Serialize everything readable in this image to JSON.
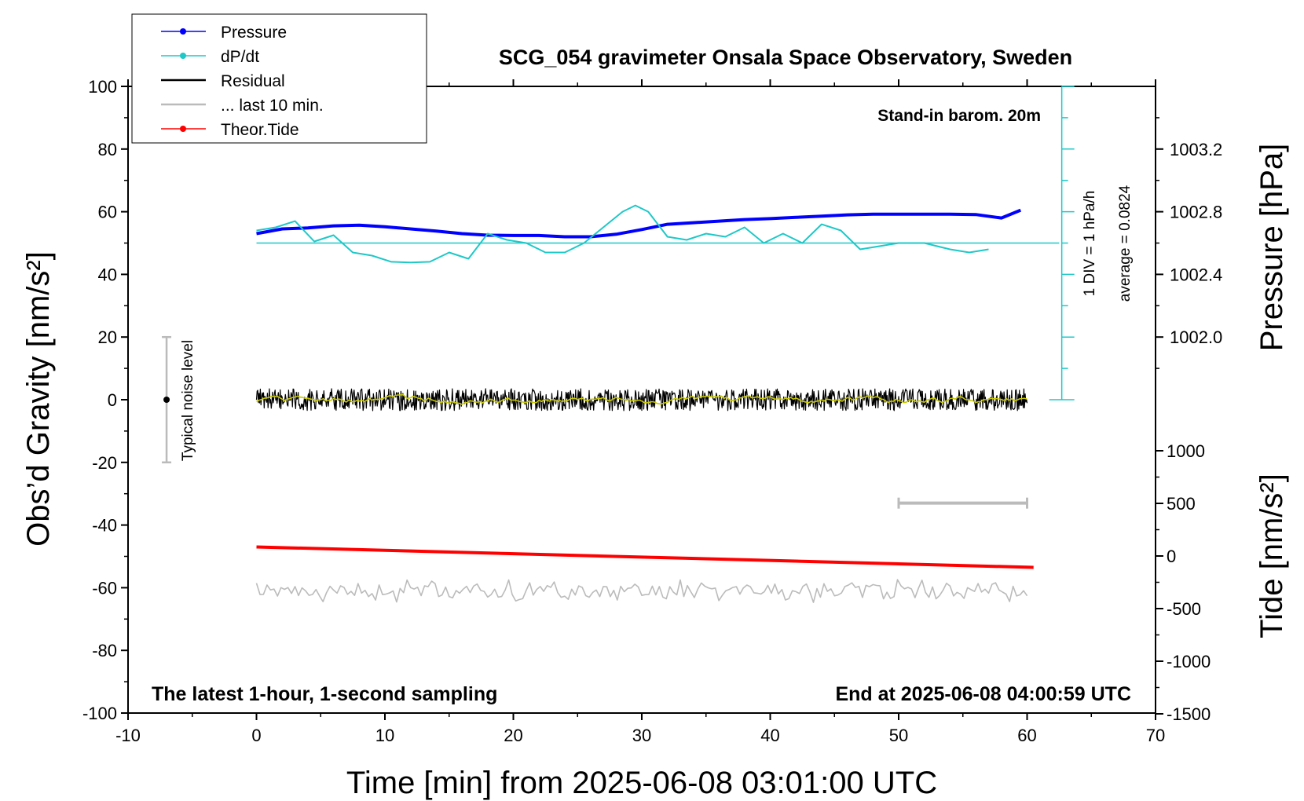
{
  "chart_data": {
    "type": "line",
    "title": "SCG_054 gravimeter Onsala Space Observatory, Sweden",
    "xlabel": "Time [min] from 2025-06-08 03:01:00 UTC",
    "ylabel_left": "Obs’d Gravity [nm/s²]",
    "ylabel_right_top": "Pressure [hPa]",
    "ylabel_right_bottom": "Tide [nm/s²]",
    "xlim": [
      -10,
      70
    ],
    "ylim_left": [
      -100,
      100
    ],
    "x_ticks": [
      -10,
      0,
      10,
      20,
      30,
      40,
      50,
      60,
      70
    ],
    "y_ticks_left": [
      -100,
      -80,
      -60,
      -40,
      -20,
      0,
      20,
      40,
      60,
      80,
      100
    ],
    "pressure_ticks": [
      "1002.0",
      "1002.4",
      "1002.8",
      "1003.2"
    ],
    "tide_ticks": [
      "1000",
      "500",
      "0",
      "-500",
      "-1000",
      "-1500"
    ],
    "annotations": {
      "stand_in": "Stand-in barom. 20m",
      "div": "1 DIV = 1 hPa/h",
      "average": "average = 0.0824",
      "noise": "Typical noise level",
      "bottom_left": "The latest 1-hour, 1-second sampling",
      "bottom_right": "End at 2025-06-08 04:00:59 UTC"
    },
    "legend_placement": "top-left",
    "legend": [
      {
        "name": "Pressure",
        "color": "#0000ff",
        "marker": true
      },
      {
        "name": "dP/dt",
        "color": "#1ec8c8",
        "marker": true
      },
      {
        "name": "Residual",
        "color": "#000000",
        "marker": false
      },
      {
        "name": "... last 10 min.",
        "color": "#bbbbbb",
        "marker": false
      },
      {
        "name": "Theor.Tide",
        "color": "#ff0000",
        "marker": true
      }
    ],
    "series": [
      {
        "name": "Pressure",
        "color": "#0000ff",
        "x": [
          0,
          2,
          4,
          6,
          8,
          10,
          12,
          14,
          16,
          18,
          20,
          22,
          24,
          26,
          28,
          30,
          32,
          34,
          36,
          38,
          40,
          42,
          44,
          46,
          48,
          50,
          52,
          54,
          56,
          58,
          59.5
        ],
        "y": [
          53,
          54.5,
          54.8,
          55.5,
          55.7,
          55.2,
          54.5,
          53.8,
          53,
          52.5,
          52.4,
          52.4,
          52,
          52,
          52.8,
          54.3,
          56,
          56.5,
          57,
          57.5,
          57.8,
          58.2,
          58.6,
          59,
          59.2,
          59.2,
          59.2,
          59.2,
          59.1,
          58,
          60.5
        ]
      },
      {
        "name": "dP/dt",
        "color": "#1ec8c8",
        "x": [
          0,
          1.5,
          3,
          4.5,
          6,
          7.5,
          9,
          10.5,
          12,
          13.5,
          15,
          16.5,
          18,
          19.5,
          21,
          22.5,
          24,
          25.5,
          27,
          28.5,
          29.5,
          30.5,
          32,
          33.5,
          35,
          36.5,
          38,
          39.5,
          41,
          42.5,
          44,
          45.5,
          47,
          48.5,
          50,
          52,
          54,
          55.5,
          57
        ],
        "y": [
          54,
          55,
          57,
          50.5,
          52.5,
          47,
          46,
          44,
          43.8,
          44,
          47,
          45,
          53,
          51,
          50,
          47,
          47,
          50,
          55,
          60,
          62,
          60,
          52,
          51,
          53,
          52,
          55,
          50,
          53,
          50,
          56,
          54,
          48,
          49,
          50,
          50,
          48,
          47,
          48
        ]
      },
      {
        "name": "dP/dt average",
        "color": "#1ec8c8",
        "x": [
          0,
          62.5
        ],
        "y": [
          50,
          50
        ]
      },
      {
        "name": "Residual",
        "color": "#000000",
        "x_range": [
          0,
          60
        ],
        "center": 0,
        "amplitude": 3.5
      },
      {
        "name": "Residual smoothed",
        "color": "#c8c800",
        "x_range": [
          0,
          60
        ],
        "center": 0,
        "amplitude": 1.2
      },
      {
        "name": "... last 10 min.",
        "color": "#bbbbbb",
        "x_range": [
          0,
          60
        ],
        "center": -61,
        "amplitude": 2.5
      },
      {
        "name": "Theor.Tide",
        "color": "#ff0000",
        "x": [
          0,
          60.5
        ],
        "y": [
          -47,
          -53.5
        ]
      }
    ],
    "noise_bar": {
      "x": -7,
      "y_low": -20,
      "y_high": 20,
      "y_mid": 0
    },
    "ten_min_bar": {
      "x_start": 50,
      "x_end": 60,
      "y": -33
    }
  }
}
